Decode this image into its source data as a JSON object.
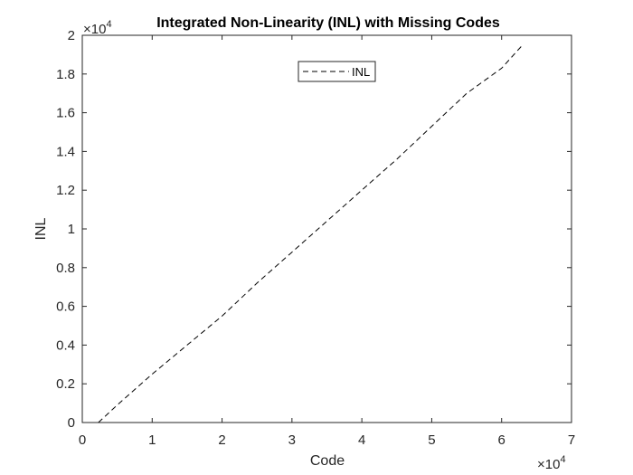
{
  "chart_data": {
    "type": "line",
    "title": "Integrated Non-Linearity (INL) with Missing Codes",
    "xlabel": "Code",
    "ylabel": "INL",
    "x_exponent_label": "×10",
    "x_exponent_power": "4",
    "y_exponent_label": "×10",
    "y_exponent_power": "4",
    "xlim": [
      0,
      70000
    ],
    "ylim": [
      0,
      20000
    ],
    "xticks": [
      0,
      10000,
      20000,
      30000,
      40000,
      50000,
      60000,
      70000
    ],
    "xtick_labels": [
      "0",
      "1",
      "2",
      "3",
      "4",
      "5",
      "6",
      "7"
    ],
    "yticks": [
      0,
      2000,
      4000,
      6000,
      8000,
      10000,
      12000,
      14000,
      16000,
      18000,
      20000
    ],
    "ytick_labels": [
      "0",
      "0.2",
      "0.4",
      "0.6",
      "0.8",
      "1",
      "1.2",
      "1.4",
      "1.6",
      "1.8",
      "2"
    ],
    "grid": false,
    "legend_position": "top-center",
    "series": [
      {
        "name": "INL",
        "color": "#000000",
        "line_style": "dashed",
        "x": [
          2300,
          5000,
          10000,
          15000,
          20000,
          25000,
          30000,
          35000,
          40000,
          45000,
          50000,
          55000,
          60000,
          63000
        ],
        "y": [
          0,
          900,
          2500,
          4000,
          5500,
          7200,
          8800,
          10400,
          12000,
          13600,
          15300,
          17000,
          18300,
          19500
        ]
      }
    ]
  }
}
